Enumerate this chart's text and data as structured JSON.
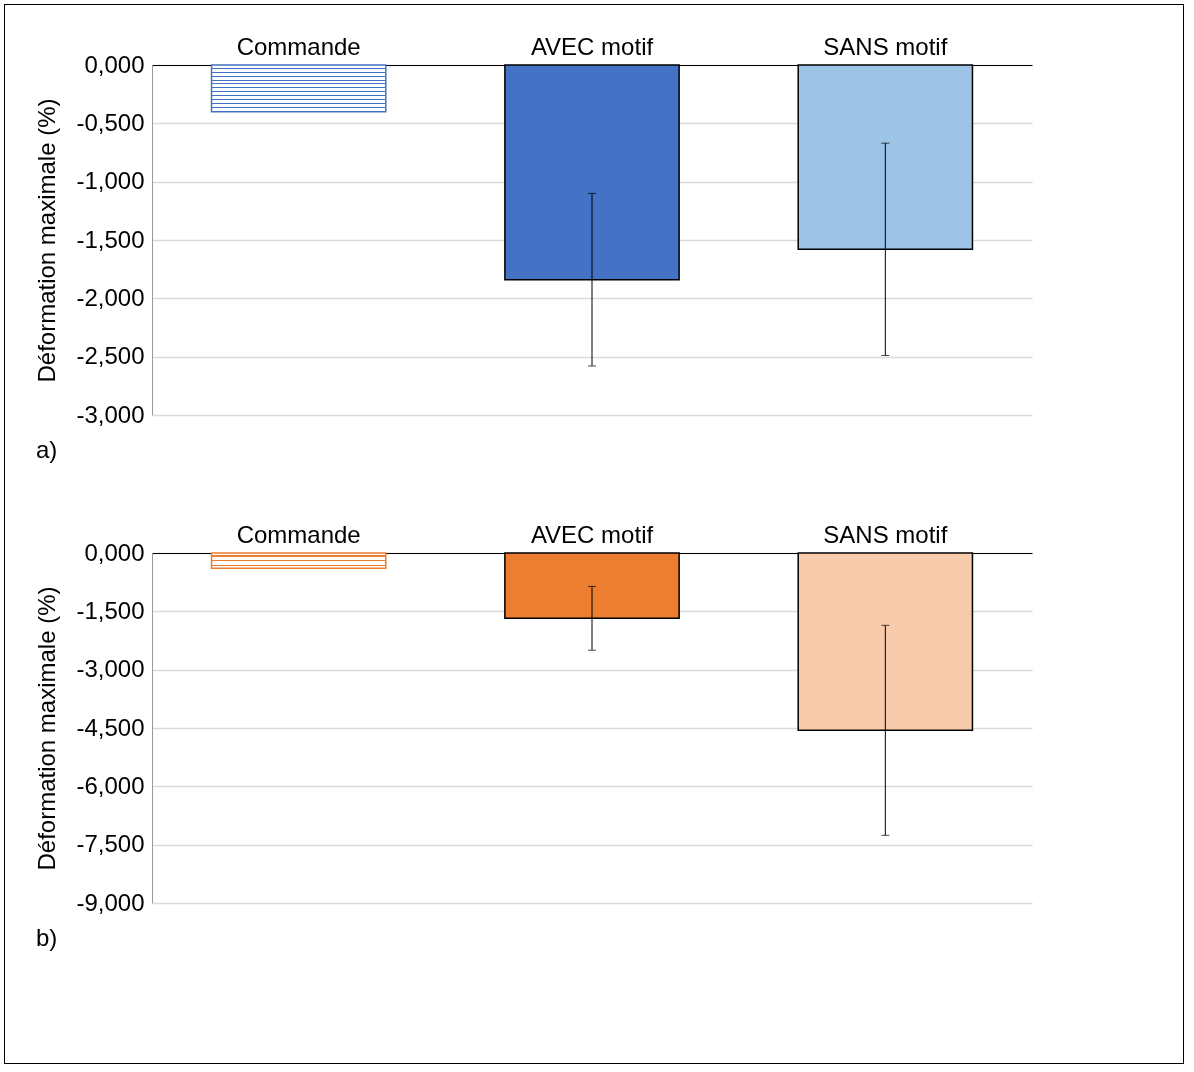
{
  "chart_data": [
    {
      "type": "bar",
      "categories": [
        "Commande",
        "AVEC motif",
        "SANS motif"
      ],
      "values": [
        -0.4,
        -1.84,
        -1.58
      ],
      "colors": [
        "#4472c4",
        "#4472c4",
        "#9dc3e6"
      ],
      "errors": [
        null,
        0.74,
        0.91
      ],
      "ylabel": "Déformation maximale (%)",
      "ylim": [
        -3,
        0
      ],
      "yticks": [
        {
          "value": 0,
          "label": "0,000"
        },
        {
          "value": -0.5,
          "label": "-0,500"
        },
        {
          "value": -1,
          "label": "-1,000"
        },
        {
          "value": -1.5,
          "label": "-1,500"
        },
        {
          "value": -2,
          "label": "-2,000"
        },
        {
          "value": -2.5,
          "label": "-2,500"
        },
        {
          "value": -3,
          "label": "-3,000"
        }
      ],
      "grid": "y",
      "annotations": [
        "a)"
      ]
    },
    {
      "type": "bar",
      "categories": [
        "Commande",
        "AVEC motif",
        "SANS motif"
      ],
      "values": [
        -0.39,
        -1.68,
        -4.56
      ],
      "colors": [
        "#ed7d31",
        "#ed7d31",
        "#f8cbad"
      ],
      "errors": [
        null,
        0.82,
        2.7
      ],
      "ylabel": "Déformation maximale (%)",
      "ylim": [
        -9,
        0
      ],
      "yticks": [
        {
          "value": 0,
          "label": "0,000"
        },
        {
          "value": -1.5,
          "label": "-1,500"
        },
        {
          "value": -3,
          "label": "-3,000"
        },
        {
          "value": -4.5,
          "label": "-4,500"
        },
        {
          "value": -6,
          "label": "-6,000"
        },
        {
          "value": -7.5,
          "label": "-7,500"
        },
        {
          "value": -9,
          "label": "-9,000"
        }
      ],
      "grid": "y",
      "annotations": [
        "b)"
      ]
    }
  ]
}
